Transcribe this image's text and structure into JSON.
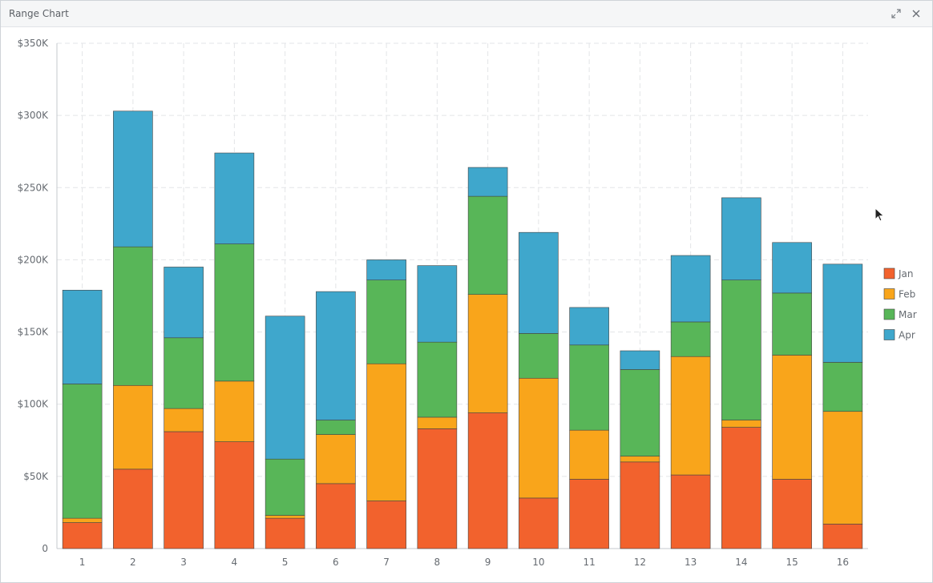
{
  "window": {
    "title": "Range Chart"
  },
  "icons": {
    "expand": "expand-icon",
    "close": "close-icon",
    "cursor": "mouse-cursor-icon"
  },
  "chart_data": {
    "type": "bar",
    "stacked": true,
    "categories": [
      "1",
      "2",
      "3",
      "4",
      "5",
      "6",
      "7",
      "8",
      "9",
      "10",
      "11",
      "12",
      "13",
      "14",
      "15",
      "16"
    ],
    "series": [
      {
        "name": "Jan",
        "color": "#f2622d",
        "values": [
          18000,
          55000,
          81000,
          74000,
          21000,
          45000,
          33000,
          83000,
          94000,
          35000,
          48000,
          60000,
          51000,
          84000,
          48000,
          17000
        ]
      },
      {
        "name": "Feb",
        "color": "#f9a51b",
        "values": [
          3000,
          58000,
          16000,
          42000,
          2000,
          34000,
          95000,
          8000,
          82000,
          83000,
          34000,
          4000,
          82000,
          5000,
          86000,
          78000
        ]
      },
      {
        "name": "Mar",
        "color": "#58b658",
        "values": [
          93000,
          96000,
          49000,
          95000,
          39000,
          10000,
          58000,
          52000,
          68000,
          31000,
          59000,
          60000,
          24000,
          97000,
          43000,
          34000
        ]
      },
      {
        "name": "Apr",
        "color": "#3fa7cc",
        "values": [
          65000,
          94000,
          49000,
          63000,
          99000,
          89000,
          14000,
          53000,
          20000,
          70000,
          26000,
          13000,
          46000,
          57000,
          35000,
          68000
        ]
      }
    ],
    "ylim": [
      0,
      350000
    ],
    "yticks": [
      0,
      50000,
      100000,
      150000,
      200000,
      250000,
      300000,
      350000
    ],
    "ytick_labels": [
      "0",
      "$50K",
      "$100K",
      "$150K",
      "$200K",
      "$250K",
      "$300K",
      "$350K"
    ],
    "grid": true,
    "legend_position": "right"
  }
}
